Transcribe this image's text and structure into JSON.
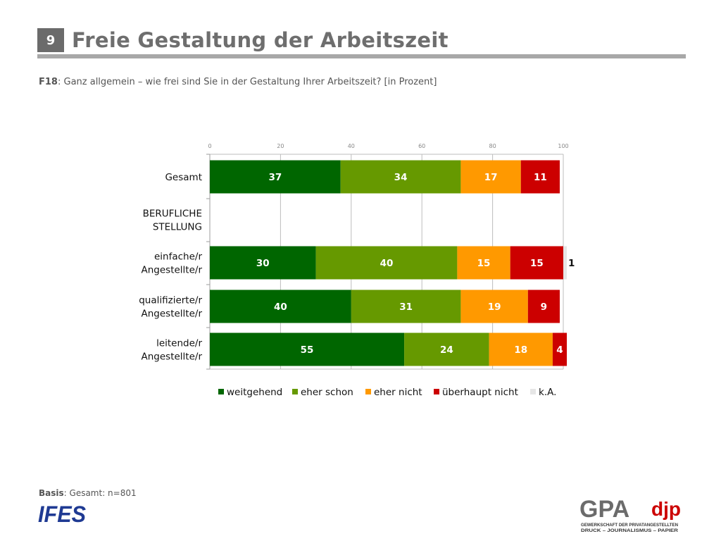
{
  "header": {
    "slide_number": "9",
    "title": "Freie Gestaltung der Arbeitszeit"
  },
  "question": {
    "id": "F18",
    "text": ": Ganz allgemein – wie frei sind Sie in der Gestaltung Ihrer Arbeitszeit? [in Prozent]"
  },
  "footer": {
    "basis_label": "Basis",
    "basis_text": ": Gesamt: n=801"
  },
  "logos": {
    "ifes": "IFES",
    "gpa": "GPA",
    "djp": "djp",
    "gpa_line1": "GEWERKSCHAFT DER PRIVATANGESTELLTEN",
    "gpa_line2": "DRUCK – JOURNALISMUS – PAPIER"
  },
  "chart_data": {
    "type": "bar",
    "orientation": "horizontal",
    "stacked": true,
    "x_range": [
      0,
      100
    ],
    "x_ticks": [
      0,
      20,
      40,
      60,
      80,
      100
    ],
    "grid": true,
    "legend_position": "bottom",
    "categories": [
      [
        "Gesamt"
      ],
      [
        "BERUFLICHE",
        "STELLUNG"
      ],
      [
        "einfache/r",
        "Angestellte/r"
      ],
      [
        "qualifizierte/r",
        "Angestellte/r"
      ],
      [
        "leitende/r",
        "Angestellte/r"
      ]
    ],
    "series": [
      {
        "name": "weitgehend",
        "color": "#006600",
        "values": [
          37,
          null,
          30,
          40,
          55
        ]
      },
      {
        "name": "eher schon",
        "color": "#669900",
        "values": [
          34,
          null,
          40,
          31,
          24
        ]
      },
      {
        "name": "eher nicht",
        "color": "#ff9900",
        "values": [
          17,
          null,
          15,
          19,
          18
        ]
      },
      {
        "name": "überhaupt nicht",
        "color": "#cc0000",
        "values": [
          11,
          null,
          15,
          9,
          4
        ]
      },
      {
        "name": "k.A.",
        "color": "#e6e6e6",
        "values": [
          0,
          null,
          1,
          0,
          0
        ]
      }
    ]
  }
}
